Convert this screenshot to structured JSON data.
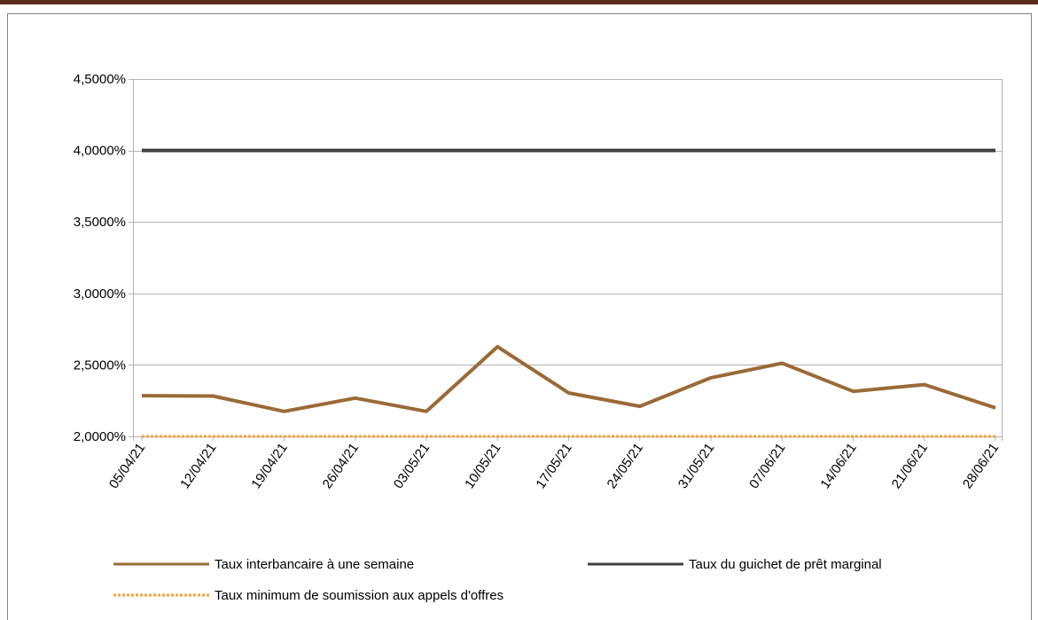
{
  "chart_data": {
    "type": "line",
    "title": "",
    "xlabel": "",
    "ylabel": "",
    "categories": [
      "05/04/21",
      "12/04/21",
      "19/04/21",
      "26/04/21",
      "03/05/21",
      "10/05/21",
      "17/05/21",
      "24/05/21",
      "31/05/21",
      "07/06/21",
      "14/06/21",
      "21/06/21",
      "28/06/21"
    ],
    "ylim": [
      2.0,
      4.5
    ],
    "yticks": [
      2.0,
      2.5,
      3.0,
      3.5,
      4.0,
      4.5
    ],
    "ytick_labels": [
      "2,0000%",
      "2,5000%",
      "3,0000%",
      "3,5000%",
      "4,0000%",
      "4,5000%"
    ],
    "grid": true,
    "legend_position": "bottom",
    "series": [
      {
        "name": "Taux interbancaire à une semaine",
        "color": "#9a6a37",
        "style": "solid",
        "values": [
          2.285,
          2.282,
          2.175,
          2.268,
          2.175,
          2.627,
          2.304,
          2.21,
          2.41,
          2.512,
          2.315,
          2.362,
          2.2
        ]
      },
      {
        "name": "Taux du guichet de prêt marginal",
        "color": "#404040",
        "style": "solid",
        "values": [
          4.0,
          4.0,
          4.0,
          4.0,
          4.0,
          4.0,
          4.0,
          4.0,
          4.0,
          4.0,
          4.0,
          4.0,
          4.0
        ]
      },
      {
        "name": "Taux minimum de soumission aux appels d'offres",
        "color": "#f5a33a",
        "style": "dotted",
        "values": [
          2.0,
          2.0,
          2.0,
          2.0,
          2.0,
          2.0,
          2.0,
          2.0,
          2.0,
          2.0,
          2.0,
          2.0,
          2.0
        ]
      }
    ]
  }
}
